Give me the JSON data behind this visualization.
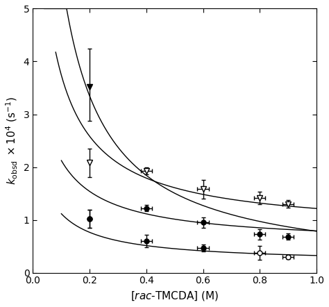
{
  "series": [
    {
      "label": "filled_triangle_down_top",
      "x": [
        0.2
      ],
      "y": [
        3.52
      ],
      "yerr_lo": [
        0.65
      ],
      "yerr_hi": [
        0.72
      ],
      "xerr": [
        0.0
      ],
      "marker": "v",
      "filled": true
    },
    {
      "label": "open_inverted_triangle",
      "x": [
        0.2,
        0.4,
        0.6,
        0.8,
        0.9
      ],
      "y": [
        2.08,
        1.93,
        1.58,
        1.42,
        1.3
      ],
      "yerr_lo": [
        0.27,
        0.07,
        0.18,
        0.12,
        0.07
      ],
      "yerr_hi": [
        0.27,
        0.07,
        0.18,
        0.12,
        0.07
      ],
      "xerr": [
        0.0,
        0.02,
        0.02,
        0.02,
        0.02
      ],
      "marker": "v",
      "filled": false
    },
    {
      "label": "filled_circle_mid",
      "x": [
        0.2,
        0.4,
        0.6,
        0.8,
        0.9
      ],
      "y": [
        1.02,
        1.22,
        0.95,
        0.73,
        0.68
      ],
      "yerr_lo": [
        0.17,
        0.06,
        0.1,
        0.1,
        0.06
      ],
      "yerr_hi": [
        0.17,
        0.06,
        0.1,
        0.1,
        0.06
      ],
      "xerr": [
        0.0,
        0.02,
        0.02,
        0.02,
        0.02
      ],
      "marker": "o",
      "filled": true
    },
    {
      "label": "bottom_mixed",
      "x": [
        0.2,
        0.4,
        0.6,
        0.8,
        0.9
      ],
      "y": [
        1.02,
        0.6,
        0.47,
        0.38,
        0.3
      ],
      "yerr_lo": [
        0.17,
        0.12,
        0.07,
        0.13,
        0.04
      ],
      "yerr_hi": [
        0.17,
        0.12,
        0.07,
        0.13,
        0.04
      ],
      "xerr": [
        0.0,
        0.02,
        0.02,
        0.02,
        0.02
      ],
      "filled_mask": [
        true,
        true,
        true,
        false,
        false
      ]
    }
  ],
  "curves": [
    {
      "A": 0.82,
      "B": 0.045,
      "C": 0.0,
      "x_start": 0.04
    },
    {
      "A": 0.46,
      "B": 0.055,
      "C": 0.78,
      "x_start": 0.08
    },
    {
      "A": 0.27,
      "B": 0.07,
      "C": 0.54,
      "x_start": 0.1
    },
    {
      "A": 0.155,
      "B": 0.065,
      "C": 0.18,
      "x_start": 0.1
    }
  ],
  "xlim": [
    0.0,
    1.0
  ],
  "ylim": [
    0.0,
    5.0
  ],
  "xticks": [
    0.0,
    0.2,
    0.4,
    0.6,
    0.8,
    1.0
  ],
  "yticks": [
    0,
    1,
    2,
    3,
    4,
    5
  ],
  "figsize": [
    4.74,
    4.42
  ],
  "dpi": 100,
  "xlabel_italic": "rac",
  "xlabel_rest": "-TMCDA] (M)",
  "xlabel_bracket": "["
}
